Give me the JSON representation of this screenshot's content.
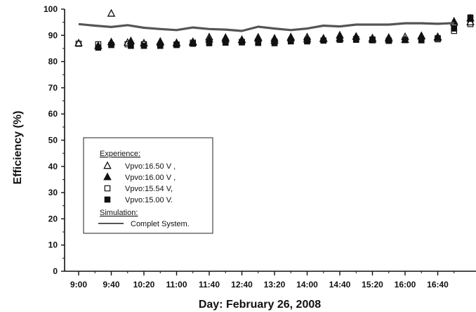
{
  "chart_data": {
    "type": "scatter",
    "xlabel": "Day: February 26, 2008",
    "ylabel": "Efficiency (%)",
    "ylim": [
      0,
      100
    ],
    "y_ticks": [
      0,
      10,
      20,
      30,
      40,
      50,
      60,
      70,
      80,
      90,
      100
    ],
    "x_tick_labels": [
      "9:00",
      "9:40",
      "10:20",
      "11:00",
      "11:40",
      "12:40",
      "13:20",
      "14:00",
      "14:40",
      "15:20",
      "16:00",
      "16:40"
    ],
    "legend": {
      "experience_title": "Experience:",
      "simulation_title": "Simulation:",
      "position": "lower-left"
    },
    "series": [
      {
        "name": "Vpvo:16.50 V ,",
        "marker": "triangle-open",
        "points": [
          [
            0,
            87.0
          ],
          [
            1.0,
            98.3
          ],
          [
            1.5,
            87.2
          ],
          [
            2.0,
            87.0
          ],
          [
            2.5,
            87.6
          ],
          [
            3.0,
            87.1
          ],
          [
            3.5,
            87.2
          ],
          [
            4.0,
            89.3
          ],
          [
            4.5,
            88.5
          ],
          [
            5.0,
            88.3
          ],
          [
            5.5,
            89.2
          ],
          [
            6.0,
            88.0
          ],
          [
            6.5,
            88.9
          ],
          [
            7.0,
            89.3
          ],
          [
            7.5,
            88.8
          ],
          [
            8.0,
            88.9
          ],
          [
            8.5,
            89.5
          ],
          [
            9.0,
            88.9
          ],
          [
            9.5,
            88.5
          ],
          [
            10.0,
            89.4
          ],
          [
            10.5,
            89.6
          ],
          [
            11.0,
            89.4
          ],
          [
            11.5,
            94.8
          ],
          [
            12.0,
            95.0
          ]
        ]
      },
      {
        "name": "Vpvo:16.00 V ,",
        "marker": "triangle-filled",
        "points": [
          [
            0.6,
            86.0
          ],
          [
            1.0,
            87.4
          ],
          [
            1.6,
            87.8
          ],
          [
            2.5,
            87.2
          ],
          [
            3.0,
            87.0
          ],
          [
            3.5,
            87.5
          ],
          [
            4.0,
            88.5
          ],
          [
            4.5,
            89.1
          ],
          [
            5.0,
            88.2
          ],
          [
            5.5,
            88.8
          ],
          [
            6.0,
            88.8
          ],
          [
            6.5,
            89.3
          ],
          [
            7.0,
            88.5
          ],
          [
            7.5,
            88.6
          ],
          [
            8.0,
            90.0
          ],
          [
            8.5,
            89.5
          ],
          [
            9.0,
            88.4
          ],
          [
            9.5,
            89.1
          ],
          [
            10.0,
            88.3
          ],
          [
            10.5,
            89.8
          ],
          [
            11.0,
            89.1
          ],
          [
            11.5,
            95.3
          ],
          [
            12.0,
            96.5
          ]
        ]
      },
      {
        "name": "Vpvo:15.54 V,",
        "marker": "square-open",
        "points": [
          [
            0,
            86.8
          ],
          [
            0.6,
            86.6
          ],
          [
            1.5,
            86.6
          ],
          [
            2.0,
            86.6
          ],
          [
            2.5,
            86.2
          ],
          [
            3.0,
            86.5
          ],
          [
            3.5,
            87.2
          ],
          [
            4.0,
            87.4
          ],
          [
            4.5,
            87.7
          ],
          [
            5.0,
            87.3
          ],
          [
            5.5,
            87.6
          ],
          [
            6.0,
            87.6
          ],
          [
            6.5,
            87.7
          ],
          [
            7.0,
            88.1
          ],
          [
            7.5,
            88.0
          ],
          [
            8.0,
            88.4
          ],
          [
            8.5,
            88.6
          ],
          [
            9.0,
            88.4
          ],
          [
            9.5,
            88.0
          ],
          [
            10.0,
            88.2
          ],
          [
            10.5,
            88.1
          ],
          [
            11.0,
            88.5
          ],
          [
            11.5,
            91.7
          ],
          [
            12.0,
            94.3
          ]
        ]
      },
      {
        "name": "Vpvo:15.00 V.",
        "marker": "square-filled",
        "points": [
          [
            0.6,
            85.3
          ],
          [
            1.0,
            86.3
          ],
          [
            1.6,
            86.0
          ],
          [
            2.0,
            86.0
          ],
          [
            2.5,
            86.0
          ],
          [
            3.0,
            86.3
          ],
          [
            3.5,
            86.8
          ],
          [
            4.0,
            87.0
          ],
          [
            4.5,
            87.2
          ],
          [
            5.0,
            87.5
          ],
          [
            5.5,
            87.1
          ],
          [
            6.0,
            87.0
          ],
          [
            6.5,
            87.9
          ],
          [
            7.0,
            87.7
          ],
          [
            7.5,
            88.0
          ],
          [
            8.0,
            88.3
          ],
          [
            8.5,
            88.3
          ],
          [
            9.0,
            88.1
          ],
          [
            9.5,
            87.9
          ],
          [
            10.0,
            88.2
          ],
          [
            10.5,
            88.4
          ],
          [
            11.0,
            88.9
          ],
          [
            11.5,
            92.6
          ],
          [
            12.0,
            96.8
          ]
        ]
      },
      {
        "name": "Complet System.",
        "marker": "line",
        "points": [
          [
            0,
            94.3
          ],
          [
            0.5,
            93.7
          ],
          [
            1.0,
            93.2
          ],
          [
            1.5,
            93.9
          ],
          [
            2.0,
            92.9
          ],
          [
            2.5,
            92.4
          ],
          [
            3.0,
            92.0
          ],
          [
            3.5,
            93.0
          ],
          [
            4.0,
            92.4
          ],
          [
            4.5,
            92.2
          ],
          [
            5.0,
            91.7
          ],
          [
            5.5,
            93.3
          ],
          [
            6.0,
            92.6
          ],
          [
            6.5,
            92.0
          ],
          [
            7.0,
            92.6
          ],
          [
            7.5,
            93.7
          ],
          [
            8.0,
            93.4
          ],
          [
            8.5,
            94.1
          ],
          [
            9.0,
            94.1
          ],
          [
            9.5,
            94.1
          ],
          [
            10.0,
            94.6
          ],
          [
            10.5,
            94.6
          ],
          [
            11.0,
            94.4
          ],
          [
            11.5,
            94.7
          ]
        ]
      }
    ]
  }
}
